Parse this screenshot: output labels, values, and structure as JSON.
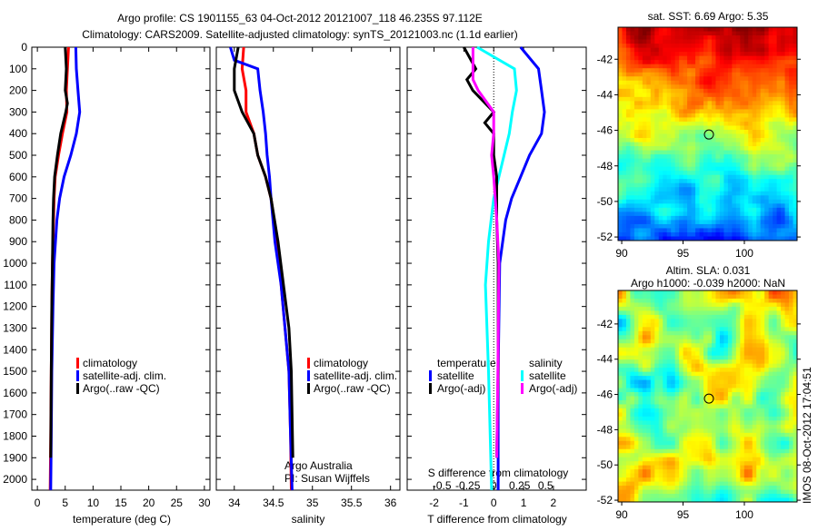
{
  "title": {
    "line1": "Argo profile: CS 1901155_63 04-Oct-2012 20121007_118 46.235S 97.112E",
    "line2": "Climatology: CARS2009. Satellite-adjusted climatology: synTS_20121003.nc (1.1d earlier)"
  },
  "colors": {
    "climatology": "#ff0000",
    "satellite": "#0000ff",
    "argo": "#000000",
    "sal_satellite": "#00ffff",
    "sal_argo": "#ff00ff"
  },
  "chart_data": [
    {
      "type": "line",
      "id": "temperature",
      "xlabel": "temperature (deg C)",
      "xlim": [
        -1,
        31
      ],
      "xticks": [
        0,
        5,
        10,
        15,
        20,
        25,
        30
      ],
      "ylim": [
        2050,
        0
      ],
      "yticks": [
        0,
        100,
        200,
        300,
        400,
        500,
        600,
        700,
        800,
        900,
        1000,
        1100,
        1200,
        1300,
        1400,
        1500,
        1600,
        1700,
        1800,
        1900,
        2000
      ],
      "legend": [
        "climatology",
        "satellite-adj. clim.",
        "Argo(..raw -QC)"
      ],
      "series": [
        {
          "name": "climatology",
          "color": "#ff0000",
          "points": [
            [
              0,
              5.6
            ],
            [
              100,
              5.4
            ],
            [
              200,
              5.2
            ],
            [
              300,
              5.3
            ],
            [
              400,
              4.5
            ],
            [
              500,
              3.8
            ],
            [
              600,
              3.2
            ],
            [
              700,
              3.0
            ],
            [
              800,
              2.9
            ],
            [
              1000,
              2.7
            ],
            [
              1200,
              2.6
            ],
            [
              1500,
              2.5
            ],
            [
              1800,
              2.4
            ],
            [
              2050,
              2.3
            ]
          ]
        },
        {
          "name": "satellite-adj. clim.",
          "color": "#0000ff",
          "points": [
            [
              0,
              6.9
            ],
            [
              100,
              7.0
            ],
            [
              200,
              7.3
            ],
            [
              300,
              7.6
            ],
            [
              400,
              7.0
            ],
            [
              500,
              6.0
            ],
            [
              600,
              4.8
            ],
            [
              700,
              4.0
            ],
            [
              800,
              3.5
            ],
            [
              1000,
              3.0
            ],
            [
              1200,
              2.8
            ],
            [
              1500,
              2.6
            ],
            [
              1800,
              2.5
            ],
            [
              2050,
              2.4
            ]
          ]
        },
        {
          "name": "Argo(..raw -QC)",
          "color": "#000000",
          "points": [
            [
              0,
              5.0
            ],
            [
              100,
              5.2
            ],
            [
              200,
              5.0
            ],
            [
              260,
              5.4
            ],
            [
              300,
              5.1
            ],
            [
              400,
              4.2
            ],
            [
              500,
              3.6
            ],
            [
              600,
              3.1
            ],
            [
              700,
              2.9
            ],
            [
              800,
              2.8
            ],
            [
              1000,
              2.7
            ],
            [
              1200,
              2.6
            ],
            [
              1500,
              2.5
            ],
            [
              1900,
              2.4
            ]
          ]
        }
      ]
    },
    {
      "type": "line",
      "id": "salinity",
      "xlabel": "salinity",
      "xlim": [
        33.77,
        36.12
      ],
      "xticks": [
        34,
        34.5,
        35,
        35.5,
        36
      ],
      "ylim": [
        2050,
        0
      ],
      "legend": [
        "climatology",
        "satellite-adj. clim.",
        "Argo(..raw -QC)"
      ],
      "annotation": [
        "Argo Australia",
        "PI: Susan Wijffels"
      ],
      "series": [
        {
          "name": "climatology",
          "color": "#ff0000",
          "points": [
            [
              0,
              34.12
            ],
            [
              100,
              34.1
            ],
            [
              200,
              34.15
            ],
            [
              300,
              34.15
            ],
            [
              400,
              34.25
            ],
            [
              500,
              34.3
            ],
            [
              600,
              34.4
            ],
            [
              700,
              34.47
            ],
            [
              900,
              34.55
            ],
            [
              1100,
              34.6
            ],
            [
              1300,
              34.65
            ],
            [
              1500,
              34.7
            ],
            [
              1800,
              34.72
            ],
            [
              2050,
              34.73
            ]
          ]
        },
        {
          "name": "satellite-adj. clim.",
          "color": "#0000ff",
          "points": [
            [
              0,
              33.95
            ],
            [
              60,
              34.0
            ],
            [
              100,
              34.3
            ],
            [
              200,
              34.33
            ],
            [
              300,
              34.37
            ],
            [
              400,
              34.4
            ],
            [
              500,
              34.42
            ],
            [
              600,
              34.45
            ],
            [
              700,
              34.47
            ],
            [
              900,
              34.52
            ],
            [
              1100,
              34.6
            ],
            [
              1300,
              34.65
            ],
            [
              1500,
              34.7
            ],
            [
              1800,
              34.72
            ],
            [
              2050,
              34.74
            ]
          ]
        },
        {
          "name": "Argo(..raw -QC)",
          "color": "#000000",
          "points": [
            [
              0,
              34.05
            ],
            [
              100,
              34.0
            ],
            [
              200,
              34.0
            ],
            [
              300,
              34.1
            ],
            [
              400,
              34.25
            ],
            [
              500,
              34.3
            ],
            [
              600,
              34.4
            ],
            [
              700,
              34.47
            ],
            [
              900,
              34.56
            ],
            [
              1100,
              34.63
            ],
            [
              1300,
              34.7
            ],
            [
              1500,
              34.73
            ],
            [
              1900,
              34.75
            ]
          ]
        }
      ]
    },
    {
      "type": "line",
      "id": "difference",
      "xlabel": "T difference from climatology",
      "xlabel_top": "S difference from climatology",
      "xlim": [
        -2.9,
        3.1
      ],
      "xticks": [
        -2,
        -1,
        0,
        1,
        2
      ],
      "s_xticks": [
        "-0.5",
        "-0.25",
        "0",
        "0.25",
        "0.5"
      ],
      "ylim": [
        2050,
        0
      ],
      "legend": {
        "temperature_title": "temperature",
        "salinity_title": "salinity",
        "satellite": "satellite",
        "argo": "Argo(-adj)"
      },
      "series": [
        {
          "name": "temperature satellite",
          "color": "#0000ff",
          "units": "T",
          "points": [
            [
              0,
              0.9
            ],
            [
              100,
              1.5
            ],
            [
              200,
              1.6
            ],
            [
              300,
              1.7
            ],
            [
              400,
              1.6
            ],
            [
              500,
              1.2
            ],
            [
              600,
              0.9
            ],
            [
              700,
              0.6
            ],
            [
              800,
              0.4
            ],
            [
              1000,
              0.2
            ],
            [
              1500,
              0.15
            ],
            [
              2050,
              0.15
            ]
          ]
        },
        {
          "name": "salinity satellite",
          "color": "#00ffff",
          "units": "S",
          "points": [
            [
              0,
              -0.16
            ],
            [
              100,
              0.2
            ],
            [
              200,
              0.22
            ],
            [
              300,
              0.18
            ],
            [
              400,
              0.15
            ],
            [
              500,
              0.1
            ],
            [
              600,
              0.05
            ],
            [
              700,
              0
            ],
            [
              900,
              -0.05
            ],
            [
              1100,
              -0.08
            ],
            [
              1500,
              -0.05
            ],
            [
              2050,
              -0.02
            ]
          ]
        },
        {
          "name": "temperature Argo(-adj)",
          "color": "#000000",
          "units": "T",
          "points": [
            [
              0,
              -1.0
            ],
            [
              100,
              -0.6
            ],
            [
              150,
              -0.9
            ],
            [
              200,
              -0.7
            ],
            [
              300,
              0
            ],
            [
              350,
              -0.3
            ],
            [
              400,
              0
            ],
            [
              500,
              0
            ],
            [
              600,
              0.1
            ],
            [
              800,
              0.1
            ],
            [
              1000,
              0.15
            ],
            [
              1500,
              0.15
            ],
            [
              1900,
              0.1
            ]
          ]
        },
        {
          "name": "salinity Argo(-adj)",
          "color": "#ff00ff",
          "units": "S",
          "points": [
            [
              0,
              -0.2
            ],
            [
              150,
              -0.2
            ],
            [
              200,
              -0.15
            ],
            [
              300,
              0
            ],
            [
              400,
              0
            ],
            [
              500,
              -0.02
            ],
            [
              600,
              0
            ],
            [
              800,
              0.03
            ],
            [
              1000,
              0.05
            ],
            [
              1500,
              0.04
            ],
            [
              1900,
              0.03
            ]
          ]
        }
      ]
    },
    {
      "type": "heatmap",
      "id": "sst_map",
      "title": "sat. SST: 6.69 Argo: 5.35",
      "xlim": [
        89.7,
        104.3
      ],
      "ylim": [
        -52.2,
        -40.2
      ],
      "xticks": [
        90,
        95,
        100
      ],
      "yticks": [
        -42,
        -44,
        -46,
        -48,
        -50,
        -52
      ],
      "marker": {
        "lon": 97.112,
        "lat": -46.235
      }
    },
    {
      "type": "heatmap",
      "id": "sla_map",
      "title": [
        "Altim. SLA: 0.031",
        "Argo h1000: -0.039 h2000: NaN"
      ],
      "xlim": [
        89.7,
        104.3
      ],
      "ylim": [
        -52.1,
        -40.1
      ],
      "xticks": [
        90,
        95,
        100
      ],
      "yticks": [
        -42,
        -44,
        -46,
        -48,
        -50,
        -52
      ],
      "marker": {
        "lon": 97.112,
        "lat": -46.235
      }
    }
  ],
  "footer": "IMOS 08-Oct-2012 17:04:51"
}
